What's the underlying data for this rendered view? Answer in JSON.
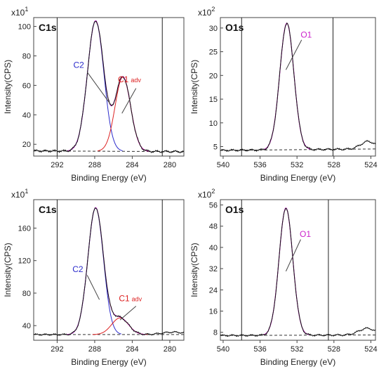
{
  "chart_data": [
    {
      "type": "line",
      "panel_label": "C1s",
      "scale_label": "x10",
      "scale_exp": "1",
      "xlabel": "Binding Energy (eV)",
      "ylabel": "Intensity(CPS)",
      "xlim": [
        294.5,
        278.5
      ],
      "ylim": [
        12,
        106
      ],
      "x_ticks": [
        292,
        288,
        284,
        280
      ],
      "x_tick_labels": [
        "292",
        "288",
        "284",
        "280"
      ],
      "y_ticks": [
        20,
        40,
        60,
        80,
        100
      ],
      "y_tick_labels": [
        "20",
        "40",
        "60",
        "80",
        "100"
      ],
      "markers": [
        292.0,
        280.8
      ],
      "baseline": [
        15.5,
        15.0
      ],
      "peaks": [
        {
          "name": "C2",
          "center": 287.9,
          "height": 88.5,
          "fwhm": 2.05,
          "color": "#2c2ccc",
          "lead_from": [
            286.3,
            47
          ],
          "lead_to": [
            288.8,
            69
          ],
          "text_at": [
            289.7,
            72
          ]
        },
        {
          "name": "C1",
          "sub": "adv",
          "center": 285.0,
          "height": 50.5,
          "fwhm": 1.95,
          "color": "#dd2222",
          "lead_from": [
            285.1,
            41
          ],
          "lead_to": [
            283.6,
            58
          ],
          "text_at": [
            284.3,
            62
          ]
        }
      ],
      "noise": 0.9
    },
    {
      "type": "line",
      "panel_label": "O1s",
      "scale_label": "x10",
      "scale_exp": "2",
      "xlabel": "Binding Energy (eV)",
      "ylabel": "Intensity(CPS)",
      "xlim": [
        540.3,
        523.5
      ],
      "ylim": [
        3.0,
        32.2
      ],
      "x_ticks": [
        540,
        536,
        532,
        528,
        524
      ],
      "x_tick_labels": [
        "540",
        "536",
        "532",
        "528",
        "524"
      ],
      "y_ticks": [
        5,
        10,
        15,
        20,
        25,
        30
      ],
      "y_tick_labels": [
        "5",
        "10",
        "15",
        "20",
        "25",
        "30"
      ],
      "markers": [
        538.0,
        528.1
      ],
      "baseline": [
        4.2,
        4.5
      ],
      "peaks": [
        {
          "name": "O1",
          "center": 533.1,
          "height": 26.7,
          "fwhm": 1.8,
          "color": "#cc22cc",
          "lead_from": [
            533.2,
            21.2
          ],
          "lead_to": [
            531.5,
            27.5
          ],
          "text_at": [
            531.0,
            28.0
          ]
        }
      ],
      "bumps": [
        {
          "center": 524.3,
          "height": 1.6,
          "width": 0.8
        }
      ],
      "noise": 0.25
    },
    {
      "type": "line",
      "panel_label": "C1s",
      "scale_label": "x10",
      "scale_exp": "1",
      "xlabel": "Binding Energy (eV)",
      "ylabel": "Intensity(CPS)",
      "xlim": [
        294.5,
        278.5
      ],
      "ylim": [
        22,
        195
      ],
      "x_ticks": [
        292,
        288,
        284,
        280
      ],
      "x_tick_labels": [
        "292",
        "288",
        "284",
        "280"
      ],
      "y_ticks": [
        40,
        80,
        120,
        160
      ],
      "y_tick_labels": [
        "40",
        "80",
        "120",
        "160"
      ],
      "markers": [
        292.0,
        280.8
      ],
      "baseline": [
        29.0,
        29.0
      ],
      "peaks": [
        {
          "name": "C2",
          "center": 287.9,
          "height": 156.0,
          "fwhm": 1.95,
          "color": "#2c2ccc",
          "lead_from": [
            287.5,
            72
          ],
          "lead_to": [
            288.8,
            102
          ],
          "text_at": [
            289.8,
            106
          ]
        },
        {
          "name": "C1",
          "sub": "adv",
          "center": 285.3,
          "height": 20.5,
          "fwhm": 2.1,
          "color": "#dd2222",
          "lead_from": [
            285.3,
            47
          ],
          "lead_to": [
            283.6,
            64
          ],
          "text_at": [
            284.2,
            70
          ]
        }
      ],
      "bumps": [
        {
          "center": 279.6,
          "height": 3.0,
          "width": 1.2
        }
      ],
      "noise": 1.2
    },
    {
      "type": "line",
      "panel_label": "O1s",
      "scale_label": "x10",
      "scale_exp": "2",
      "xlabel": "Binding Energy (eV)",
      "ylabel": "Intensity(CPS)",
      "xlim": [
        540.3,
        523.5
      ],
      "ylim": [
        5.0,
        58.0
      ],
      "x_ticks": [
        540,
        536,
        532,
        528,
        524
      ],
      "x_tick_labels": [
        "540",
        "536",
        "532",
        "528",
        "524"
      ],
      "y_ticks": [
        8,
        16,
        24,
        32,
        40,
        48,
        56
      ],
      "y_tick_labels": [
        "8",
        "16",
        "24",
        "32",
        "40",
        "48",
        "56"
      ],
      "markers": [
        538.0,
        528.6
      ],
      "baseline": [
        6.8,
        7.0
      ],
      "peaks": [
        {
          "name": "O1",
          "center": 533.2,
          "height": 48.0,
          "fwhm": 1.75,
          "color": "#cc22cc",
          "lead_from": [
            533.2,
            31
          ],
          "lead_to": [
            531.6,
            43
          ],
          "text_at": [
            531.1,
            44
          ]
        }
      ],
      "bumps": [
        {
          "center": 524.4,
          "height": 2.5,
          "width": 0.9
        }
      ],
      "noise": 0.4
    }
  ]
}
